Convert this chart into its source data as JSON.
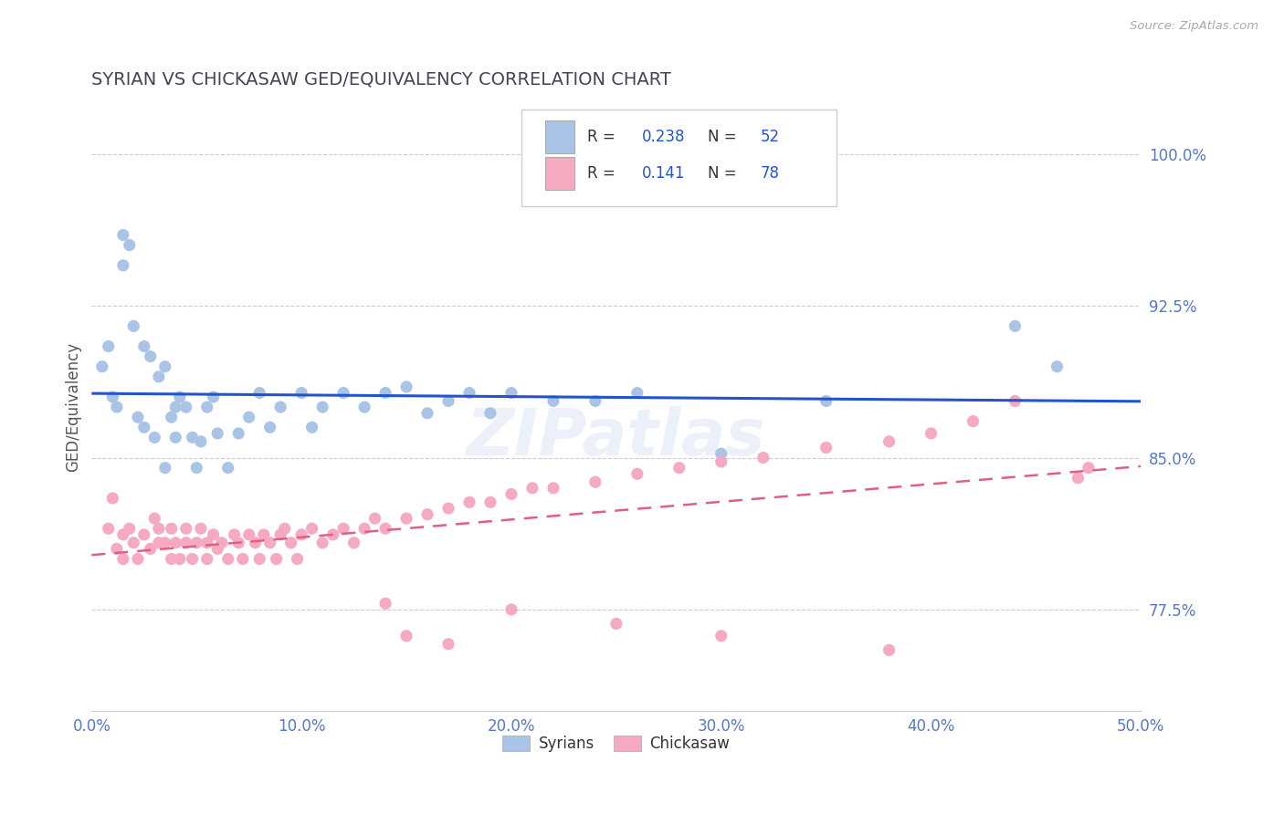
{
  "title": "SYRIAN VS CHICKASAW GED/EQUIVALENCY CORRELATION CHART",
  "source": "Source: ZipAtlas.com",
  "ylabel": "GED/Equivalency",
  "xlim": [
    0.0,
    0.5
  ],
  "ylim": [
    0.725,
    1.025
  ],
  "yticks": [
    0.775,
    0.85,
    0.925,
    1.0
  ],
  "ytick_labels": [
    "77.5%",
    "85.0%",
    "92.5%",
    "100.0%"
  ],
  "xticks": [
    0.0,
    0.1,
    0.2,
    0.3,
    0.4,
    0.5
  ],
  "xtick_labels": [
    "0.0%",
    "10.0%",
    "20.0%",
    "30.0%",
    "40.0%",
    "50.0%"
  ],
  "syrian_R": 0.238,
  "syrian_N": 52,
  "chickasaw_R": 0.141,
  "chickasaw_N": 78,
  "syrian_color": "#aac4e8",
  "chickasaw_color": "#f5aac2",
  "syrian_line_color": "#2255cc",
  "chickasaw_line_color": "#e06080",
  "title_color": "#444455",
  "tick_color": "#5577cc",
  "grid_color": "#cccccc",
  "background_color": "#ffffff",
  "syrian_x": [
    0.005,
    0.008,
    0.01,
    0.012,
    0.015,
    0.015,
    0.018,
    0.02,
    0.022,
    0.025,
    0.025,
    0.028,
    0.03,
    0.032,
    0.035,
    0.035,
    0.038,
    0.04,
    0.04,
    0.042,
    0.045,
    0.048,
    0.05,
    0.052,
    0.055,
    0.058,
    0.06,
    0.065,
    0.07,
    0.075,
    0.08,
    0.085,
    0.09,
    0.1,
    0.105,
    0.11,
    0.12,
    0.13,
    0.14,
    0.15,
    0.16,
    0.17,
    0.18,
    0.19,
    0.2,
    0.22,
    0.24,
    0.26,
    0.3,
    0.35,
    0.44,
    0.46
  ],
  "syrian_y": [
    0.895,
    0.905,
    0.88,
    0.875,
    0.96,
    0.945,
    0.955,
    0.915,
    0.87,
    0.865,
    0.905,
    0.9,
    0.86,
    0.89,
    0.845,
    0.895,
    0.87,
    0.875,
    0.86,
    0.88,
    0.875,
    0.86,
    0.845,
    0.858,
    0.875,
    0.88,
    0.862,
    0.845,
    0.862,
    0.87,
    0.882,
    0.865,
    0.875,
    0.882,
    0.865,
    0.875,
    0.882,
    0.875,
    0.882,
    0.885,
    0.872,
    0.878,
    0.882,
    0.872,
    0.882,
    0.878,
    0.878,
    0.882,
    0.852,
    0.878,
    0.915,
    0.895
  ],
  "chickasaw_x": [
    0.008,
    0.01,
    0.012,
    0.015,
    0.015,
    0.018,
    0.02,
    0.022,
    0.025,
    0.028,
    0.03,
    0.032,
    0.032,
    0.035,
    0.038,
    0.038,
    0.04,
    0.042,
    0.045,
    0.045,
    0.048,
    0.05,
    0.052,
    0.055,
    0.055,
    0.058,
    0.06,
    0.062,
    0.065,
    0.068,
    0.07,
    0.072,
    0.075,
    0.078,
    0.08,
    0.082,
    0.085,
    0.088,
    0.09,
    0.092,
    0.095,
    0.098,
    0.1,
    0.105,
    0.11,
    0.115,
    0.12,
    0.125,
    0.13,
    0.135,
    0.14,
    0.15,
    0.16,
    0.17,
    0.18,
    0.19,
    0.2,
    0.21,
    0.22,
    0.24,
    0.26,
    0.28,
    0.3,
    0.32,
    0.35,
    0.38,
    0.4,
    0.42,
    0.44,
    0.14,
    0.2,
    0.25,
    0.3,
    0.38,
    0.15,
    0.17,
    0.47,
    0.475
  ],
  "chickasaw_y": [
    0.815,
    0.83,
    0.805,
    0.812,
    0.8,
    0.815,
    0.808,
    0.8,
    0.812,
    0.805,
    0.82,
    0.808,
    0.815,
    0.808,
    0.8,
    0.815,
    0.808,
    0.8,
    0.808,
    0.815,
    0.8,
    0.808,
    0.815,
    0.808,
    0.8,
    0.812,
    0.805,
    0.808,
    0.8,
    0.812,
    0.808,
    0.8,
    0.812,
    0.808,
    0.8,
    0.812,
    0.808,
    0.8,
    0.812,
    0.815,
    0.808,
    0.8,
    0.812,
    0.815,
    0.808,
    0.812,
    0.815,
    0.808,
    0.815,
    0.82,
    0.815,
    0.82,
    0.822,
    0.825,
    0.828,
    0.828,
    0.832,
    0.835,
    0.835,
    0.838,
    0.842,
    0.845,
    0.848,
    0.85,
    0.855,
    0.858,
    0.862,
    0.868,
    0.878,
    0.778,
    0.775,
    0.768,
    0.762,
    0.755,
    0.762,
    0.758,
    0.84,
    0.845
  ]
}
